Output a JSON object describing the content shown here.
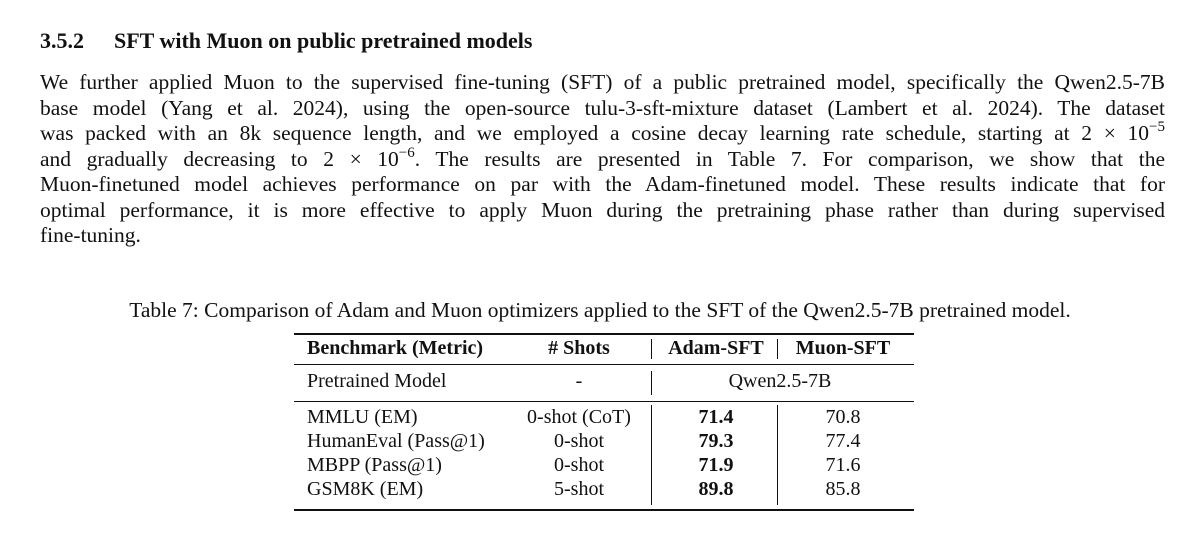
{
  "section": {
    "number": "3.5.2",
    "title": "SFT with Muon on public pretrained models"
  },
  "paragraph": {
    "l1": "We further applied Muon to the supervised fine-tuning (SFT) of a public pretrained model, specifically the Qwen2.5-7B",
    "l2": "base model (Yang et al. 2024), using the open-source tulu-3-sft-mixture dataset (Lambert et al. 2024). The dataset",
    "l3_pre": "was packed with an 8k sequence length, and we employed a cosine decay learning rate schedule, starting at 2 × 10",
    "l3_exp": "−5",
    "l4_pre": "and gradually decreasing to 2 × 10",
    "l4_exp": "−6",
    "l4_post": ". The results are presented in Table 7. For comparison, we show that the",
    "l5": "Muon-finetuned model achieves performance on par with the Adam-finetuned model. These results indicate that for",
    "l6": "optimal performance, it is more effective to apply Muon during the pretraining phase rather than during supervised",
    "l7": "fine-tuning."
  },
  "table": {
    "caption": "Table 7: Comparison of Adam and Muon optimizers applied to the SFT of the Qwen2.5-7B pretrained model.",
    "headers": {
      "benchmark": "Benchmark (Metric)",
      "shots": "# Shots",
      "adam": "Adam-SFT",
      "muon": "Muon-SFT"
    },
    "pretrained_row": {
      "label": "Pretrained Model",
      "shots": "-",
      "model": "Qwen2.5-7B"
    },
    "rows": [
      {
        "benchmark": "MMLU (EM)",
        "shots": "0-shot (CoT)",
        "adam": "71.4",
        "muon": "70.8"
      },
      {
        "benchmark": "HumanEval (Pass@1)",
        "shots": "0-shot",
        "adam": "79.3",
        "muon": "77.4"
      },
      {
        "benchmark": "MBPP (Pass@1)",
        "shots": "0-shot",
        "adam": "71.9",
        "muon": "71.6"
      },
      {
        "benchmark": "GSM8K (EM)",
        "shots": "5-shot",
        "adam": "89.8",
        "muon": "85.8"
      }
    ]
  }
}
